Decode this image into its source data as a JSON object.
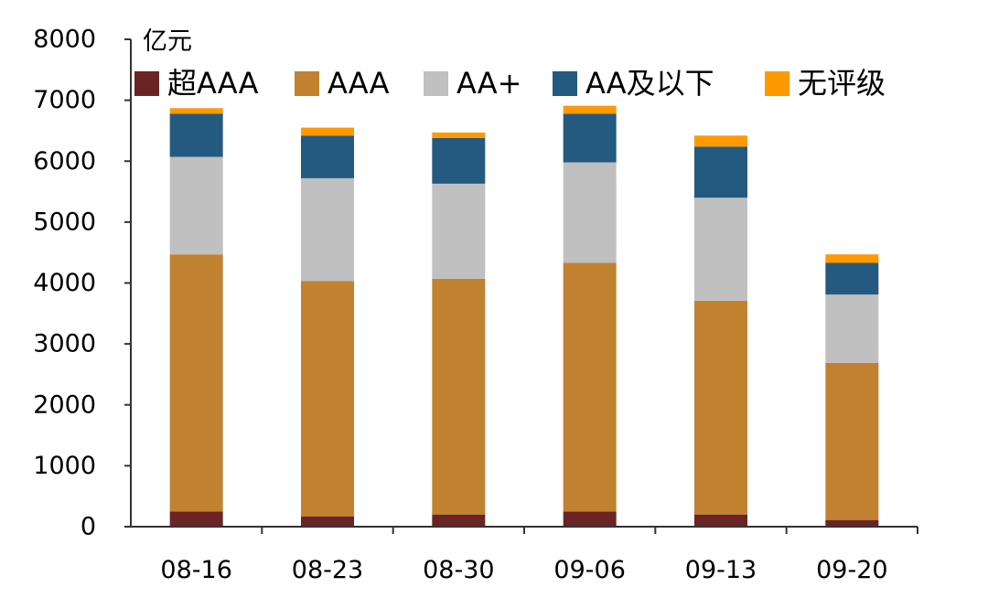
{
  "chart_data": {
    "type": "bar",
    "stacked": true,
    "title": "",
    "xlabel": "",
    "ylabel": "亿元",
    "ylim": [
      0,
      8000
    ],
    "yticks": [
      0,
      1000,
      2000,
      3000,
      4000,
      5000,
      6000,
      7000,
      8000
    ],
    "grid": false,
    "legend_position": "top",
    "categories": [
      "08-16",
      "08-23",
      "08-30",
      "09-06",
      "09-13",
      "09-20"
    ],
    "series": [
      {
        "name": "超AAA",
        "color": "#6b2424",
        "values": [
          250,
          170,
          200,
          250,
          200,
          110
        ]
      },
      {
        "name": "AAA",
        "color": "#c08230",
        "values": [
          4220,
          3860,
          3870,
          4080,
          3510,
          2580
        ]
      },
      {
        "name": "AA+",
        "color": "#c0c0c0",
        "values": [
          1600,
          1690,
          1560,
          1650,
          1690,
          1120
        ]
      },
      {
        "name": "AA及以下",
        "color": "#245a80",
        "values": [
          710,
          700,
          750,
          800,
          840,
          520
        ]
      },
      {
        "name": "无评级",
        "color": "#ff9900",
        "values": [
          90,
          130,
          90,
          130,
          180,
          140
        ]
      }
    ]
  }
}
